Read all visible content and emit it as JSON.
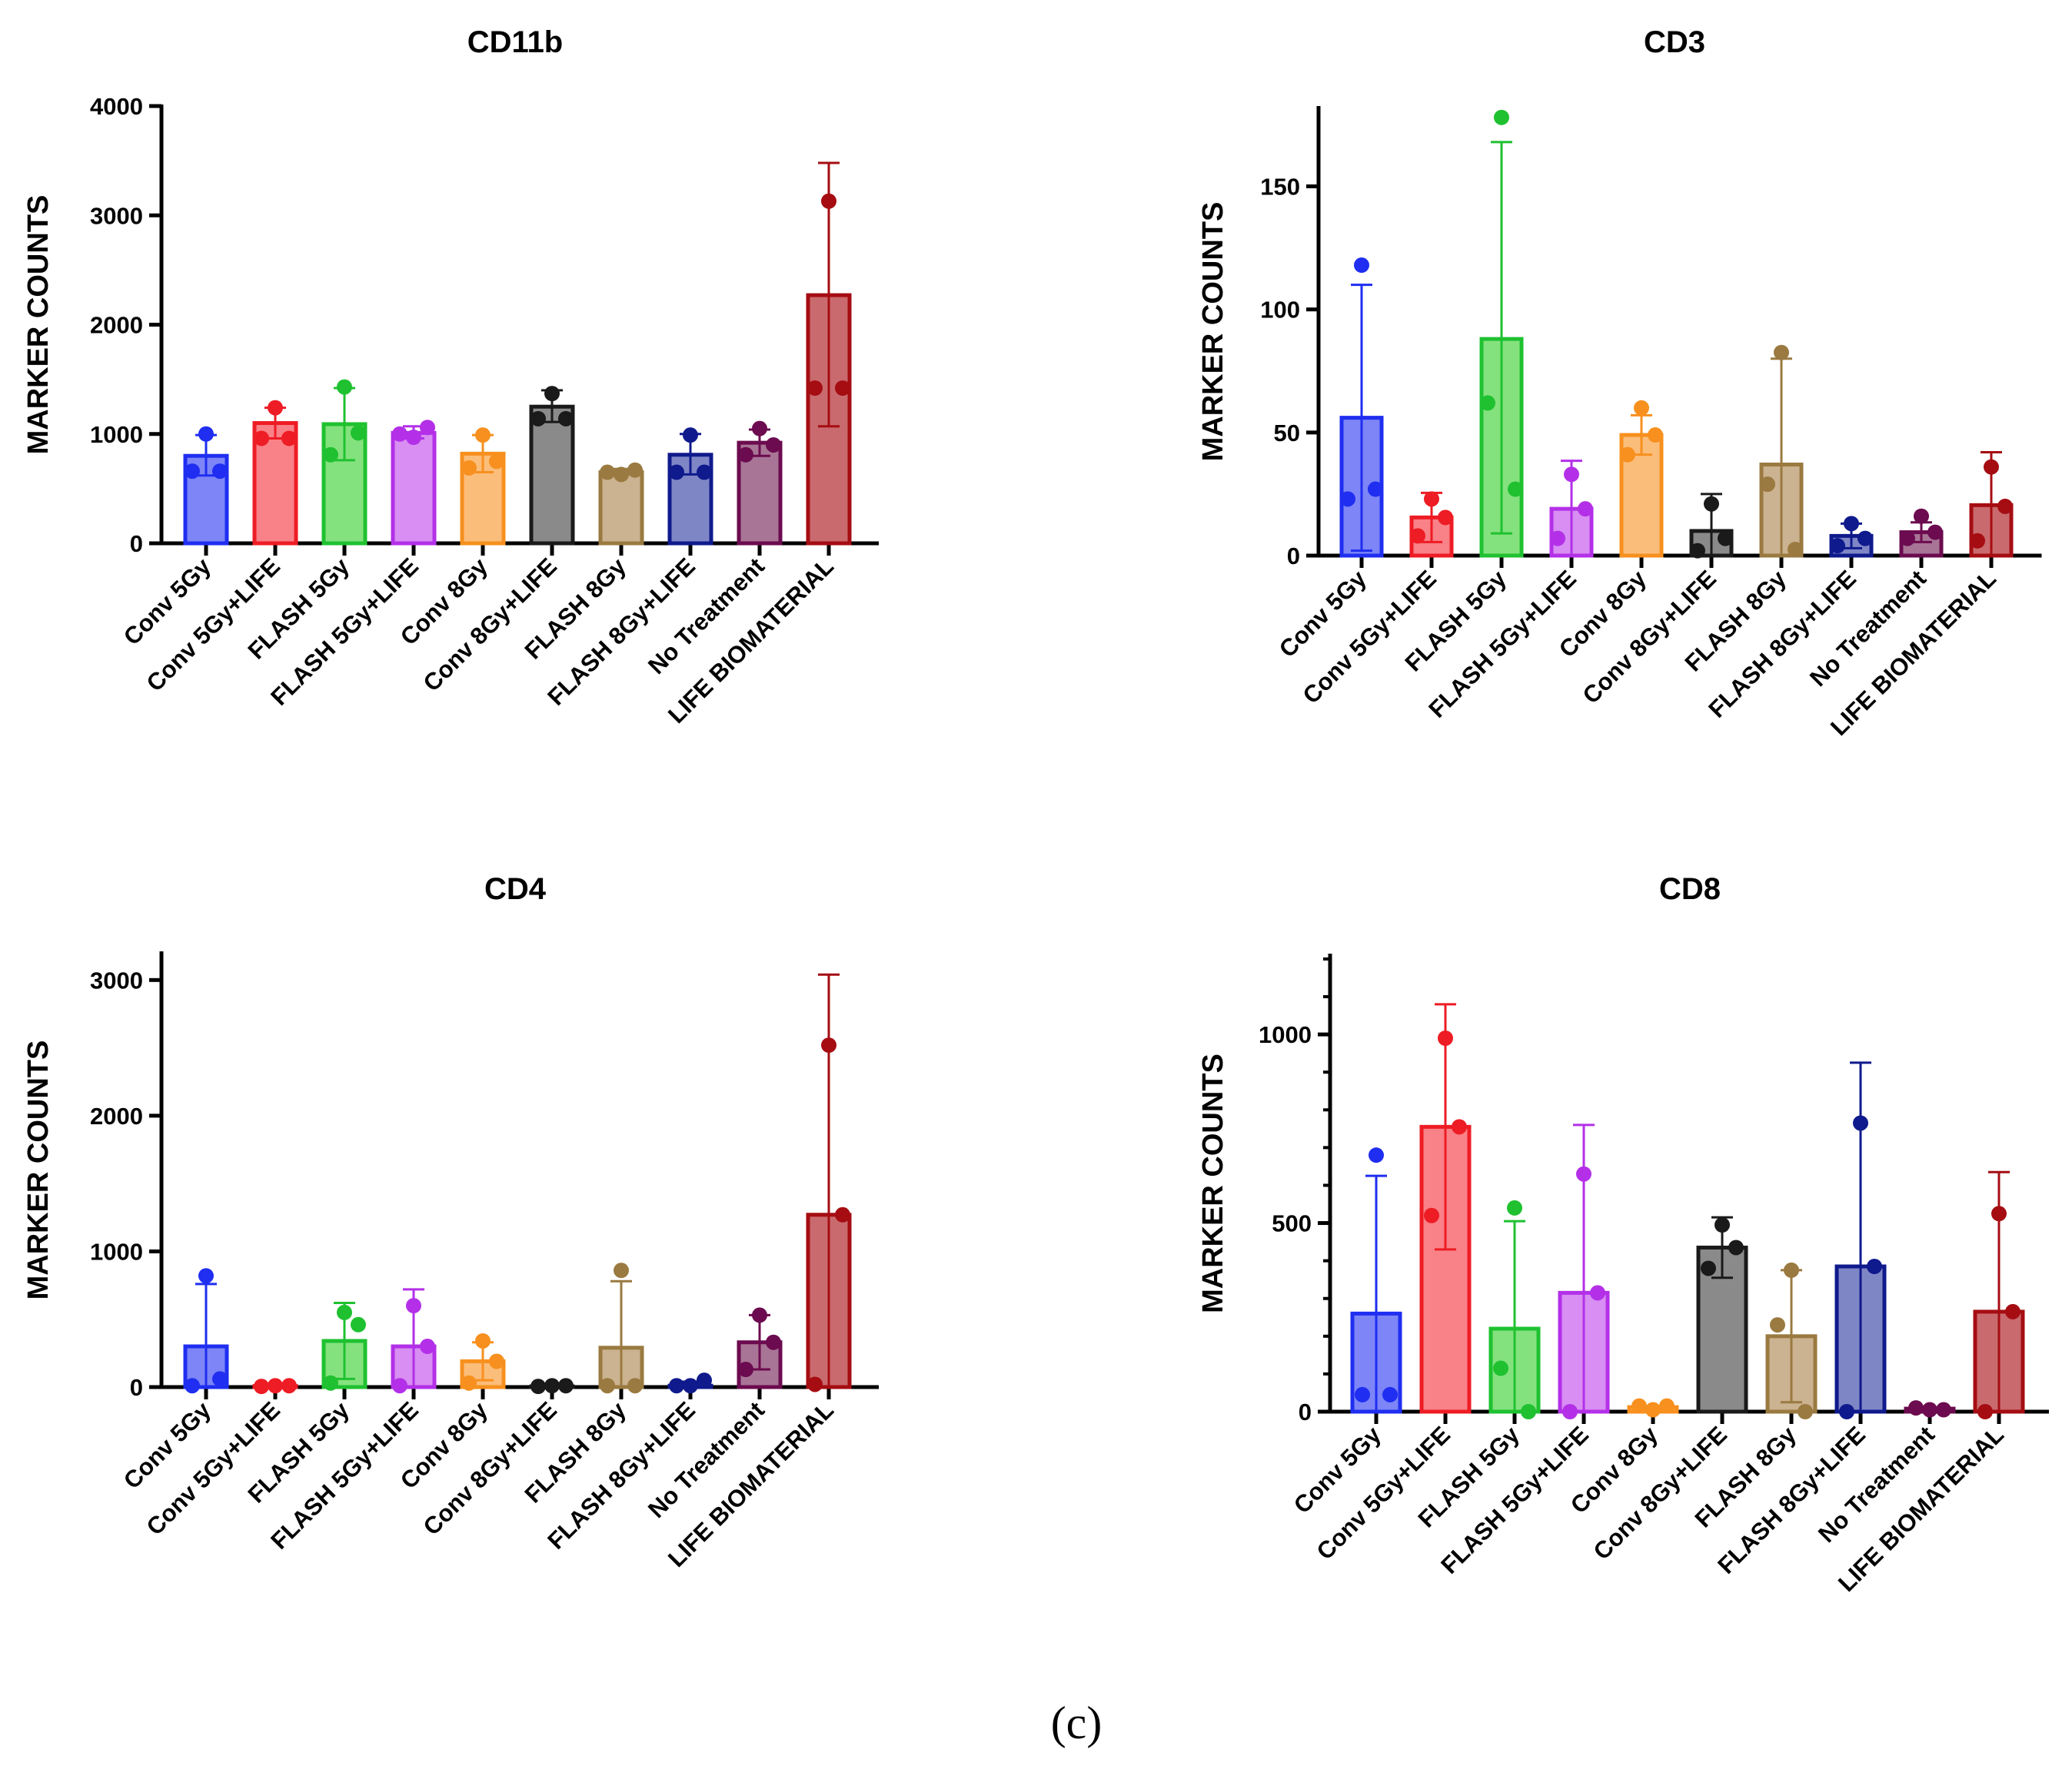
{
  "figure": {
    "panel_label": "(c)"
  },
  "chart_data": [
    {
      "type": "bar",
      "title": "CD11b",
      "ylabel": "MARKER COUNTS",
      "xlabel": "",
      "ylim": [
        0,
        4000
      ],
      "yticks": [
        0,
        1000,
        2000,
        3000,
        4000
      ],
      "ytick_labels": [
        "0",
        "1000",
        "2000",
        "3000",
        "4000"
      ],
      "minor_ticks": 0,
      "categories": [
        "Conv 5Gy",
        "Conv 5Gy+LIFE",
        "FLASH 5Gy",
        "FLASH 5Gy+LIFE",
        "Conv 8Gy",
        "Conv 8Gy+LIFE",
        "FLASH 8Gy",
        "FLASH 8Gy+LIFE",
        "No Treatment",
        "LIFE BIOMATERIAL"
      ],
      "values": [
        800,
        1100,
        1090,
        1010,
        820,
        1250,
        650,
        810,
        920,
        2270
      ],
      "error_upper": [
        990,
        1240,
        1420,
        1070,
        990,
        1400,
        680,
        1000,
        1040,
        3480
      ],
      "error_lower": [
        620,
        960,
        760,
        960,
        650,
        1110,
        630,
        630,
        800,
        1070
      ],
      "points": [
        [
          1000,
          660,
          660
        ],
        [
          1240,
          960,
          960
        ],
        [
          1430,
          810,
          1010
        ],
        [
          970,
          1000,
          1060
        ],
        [
          990,
          690,
          750
        ],
        [
          1370,
          1140,
          1140
        ],
        [
          630,
          650,
          670
        ],
        [
          990,
          650,
          650
        ],
        [
          1050,
          810,
          900
        ],
        [
          3130,
          1420,
          1420
        ]
      ],
      "colors": [
        "#1f2ef0",
        "#ee1c24",
        "#1fc130",
        "#b330e8",
        "#f7901e",
        "#1a1a1a",
        "#9a7a40",
        "#0f1a8c",
        "#6c0b4f",
        "#a50d12"
      ],
      "fill_colors": [
        "#7d85f7",
        "#f98188",
        "#84e27e",
        "#d88ef2",
        "#fbbd7a",
        "#8a8a8a",
        "#cbb290",
        "#7f86c6",
        "#a87596",
        "#c96a6e"
      ]
    },
    {
      "type": "bar",
      "title": "CD3",
      "ylabel": "MARKER COUNTS",
      "xlabel": "",
      "ylim": [
        0,
        182
      ],
      "yticks": [
        0,
        50,
        100,
        150
      ],
      "ytick_labels": [
        "0",
        "50",
        "100",
        "150"
      ],
      "minor_ticks": 0,
      "categories": [
        "Conv 5Gy",
        "Conv 5Gy+LIFE",
        "FLASH 5Gy",
        "FLASH 5Gy+LIFE",
        "Conv 8Gy",
        "Conv 8Gy+LIFE",
        "FLASH 8Gy",
        "FLASH 8Gy+LIFE",
        "No Treatment",
        "LIFE BIOMATERIAL"
      ],
      "values": [
        56,
        15.5,
        88,
        19,
        49,
        10,
        37,
        8,
        9.5,
        20.5
      ],
      "error_upper": [
        110,
        25.5,
        168,
        38.5,
        57,
        25,
        80,
        13,
        13.5,
        42
      ],
      "error_lower": [
        2,
        5.5,
        9,
        0,
        41,
        0,
        0,
        3,
        5.5,
        0
      ],
      "points": [
        [
          118,
          23,
          27
        ],
        [
          23,
          8,
          15.5
        ],
        [
          178,
          62,
          27
        ],
        [
          33,
          7,
          19
        ],
        [
          60,
          41,
          49
        ],
        [
          21,
          2,
          7
        ],
        [
          82.5,
          29,
          2.5
        ],
        [
          13,
          4,
          7
        ],
        [
          16,
          7,
          9.5
        ],
        [
          36,
          6,
          20
        ]
      ],
      "colors": [
        "#1f2ef0",
        "#ee1c24",
        "#1fc130",
        "#b330e8",
        "#f7901e",
        "#1a1a1a",
        "#9a7a40",
        "#0f1a8c",
        "#6c0b4f",
        "#a50d12"
      ],
      "fill_colors": [
        "#7d85f7",
        "#f98188",
        "#84e27e",
        "#d88ef2",
        "#fbbd7a",
        "#8a8a8a",
        "#cbb290",
        "#7f86c6",
        "#a87596",
        "#c96a6e"
      ]
    },
    {
      "type": "bar",
      "title": "CD4",
      "ylabel": "MARKER COUNTS",
      "xlabel": "",
      "ylim": [
        0,
        3200
      ],
      "yticks": [
        0,
        1000,
        2000,
        3000
      ],
      "ytick_labels": [
        "0",
        "1000",
        "2000",
        "3000"
      ],
      "minor_ticks": 0,
      "categories": [
        "Conv 5Gy",
        "Conv 5Gy+LIFE",
        "FLASH 5Gy",
        "FLASH 5Gy+LIFE",
        "Conv 8Gy",
        "Conv 8Gy+LIFE",
        "FLASH 8Gy",
        "FLASH 8Gy+LIFE",
        "No Treatment",
        "LIFE BIOMATERIAL"
      ],
      "values": [
        300,
        8,
        340,
        300,
        190,
        5,
        290,
        10,
        330,
        1270
      ],
      "error_upper": [
        760,
        15,
        620,
        720,
        330,
        10,
        780,
        40,
        530,
        3040
      ],
      "error_lower": [
        0,
        0,
        60,
        0,
        50,
        0,
        0,
        0,
        130,
        0
      ],
      "points": [
        [
          820,
          10,
          60
        ],
        [
          10,
          5,
          10
        ],
        [
          550,
          30,
          460
        ],
        [
          600,
          10,
          300
        ],
        [
          340,
          30,
          190
        ],
        [
          10,
          5,
          10
        ],
        [
          860,
          10,
          10
        ],
        [
          10,
          10,
          50
        ],
        [
          530,
          130,
          330
        ],
        [
          2520,
          20,
          1270
        ]
      ],
      "colors": [
        "#1f2ef0",
        "#ee1c24",
        "#1fc130",
        "#b330e8",
        "#f7901e",
        "#1a1a1a",
        "#9a7a40",
        "#0f1a8c",
        "#6c0b4f",
        "#a50d12"
      ],
      "fill_colors": [
        "#7d85f7",
        "#f98188",
        "#84e27e",
        "#d88ef2",
        "#fbbd7a",
        "#8a8a8a",
        "#cbb290",
        "#7f86c6",
        "#a87596",
        "#c96a6e"
      ]
    },
    {
      "type": "bar",
      "title": "CD8",
      "ylabel": "MARKER COUNTS",
      "xlabel": "",
      "ylim": [
        0,
        1210
      ],
      "yticks": [
        0,
        500,
        1000
      ],
      "ytick_labels": [
        "0",
        "500",
        "1000"
      ],
      "minor_ticks": 4,
      "categories": [
        "Conv 5Gy",
        "Conv 5Gy+LIFE",
        "FLASH 5Gy",
        "FLASH 5Gy+LIFE",
        "Conv 8Gy",
        "Conv 8Gy+LIFE",
        "FLASH 8Gy",
        "FLASH 8Gy+LIFE",
        "No Treatment",
        "LIFE BIOMATERIAL"
      ],
      "values": [
        260,
        755,
        220,
        315,
        12,
        435,
        200,
        385,
        8,
        265
      ],
      "error_upper": [
        625,
        1080,
        505,
        760,
        15,
        515,
        375,
        925,
        10,
        635
      ],
      "error_lower": [
        0,
        430,
        0,
        0,
        5,
        355,
        25,
        0,
        5,
        0
      ],
      "points": [
        [
          680,
          45,
          45
        ],
        [
          990,
          520,
          755
        ],
        [
          540,
          115,
          0
        ],
        [
          630,
          0,
          315
        ],
        [
          5,
          15,
          15
        ],
        [
          495,
          380,
          435
        ],
        [
          375,
          230,
          0
        ],
        [
          765,
          0,
          385
        ],
        [
          5,
          10,
          5
        ],
        [
          525,
          0,
          265
        ]
      ],
      "colors": [
        "#1f2ef0",
        "#ee1c24",
        "#1fc130",
        "#b330e8",
        "#f7901e",
        "#1a1a1a",
        "#9a7a40",
        "#0f1a8c",
        "#6c0b4f",
        "#a50d12"
      ],
      "fill_colors": [
        "#7d85f7",
        "#f98188",
        "#84e27e",
        "#d88ef2",
        "#fbbd7a",
        "#8a8a8a",
        "#cbb290",
        "#7f86c6",
        "#a87596",
        "#c96a6e"
      ]
    }
  ]
}
